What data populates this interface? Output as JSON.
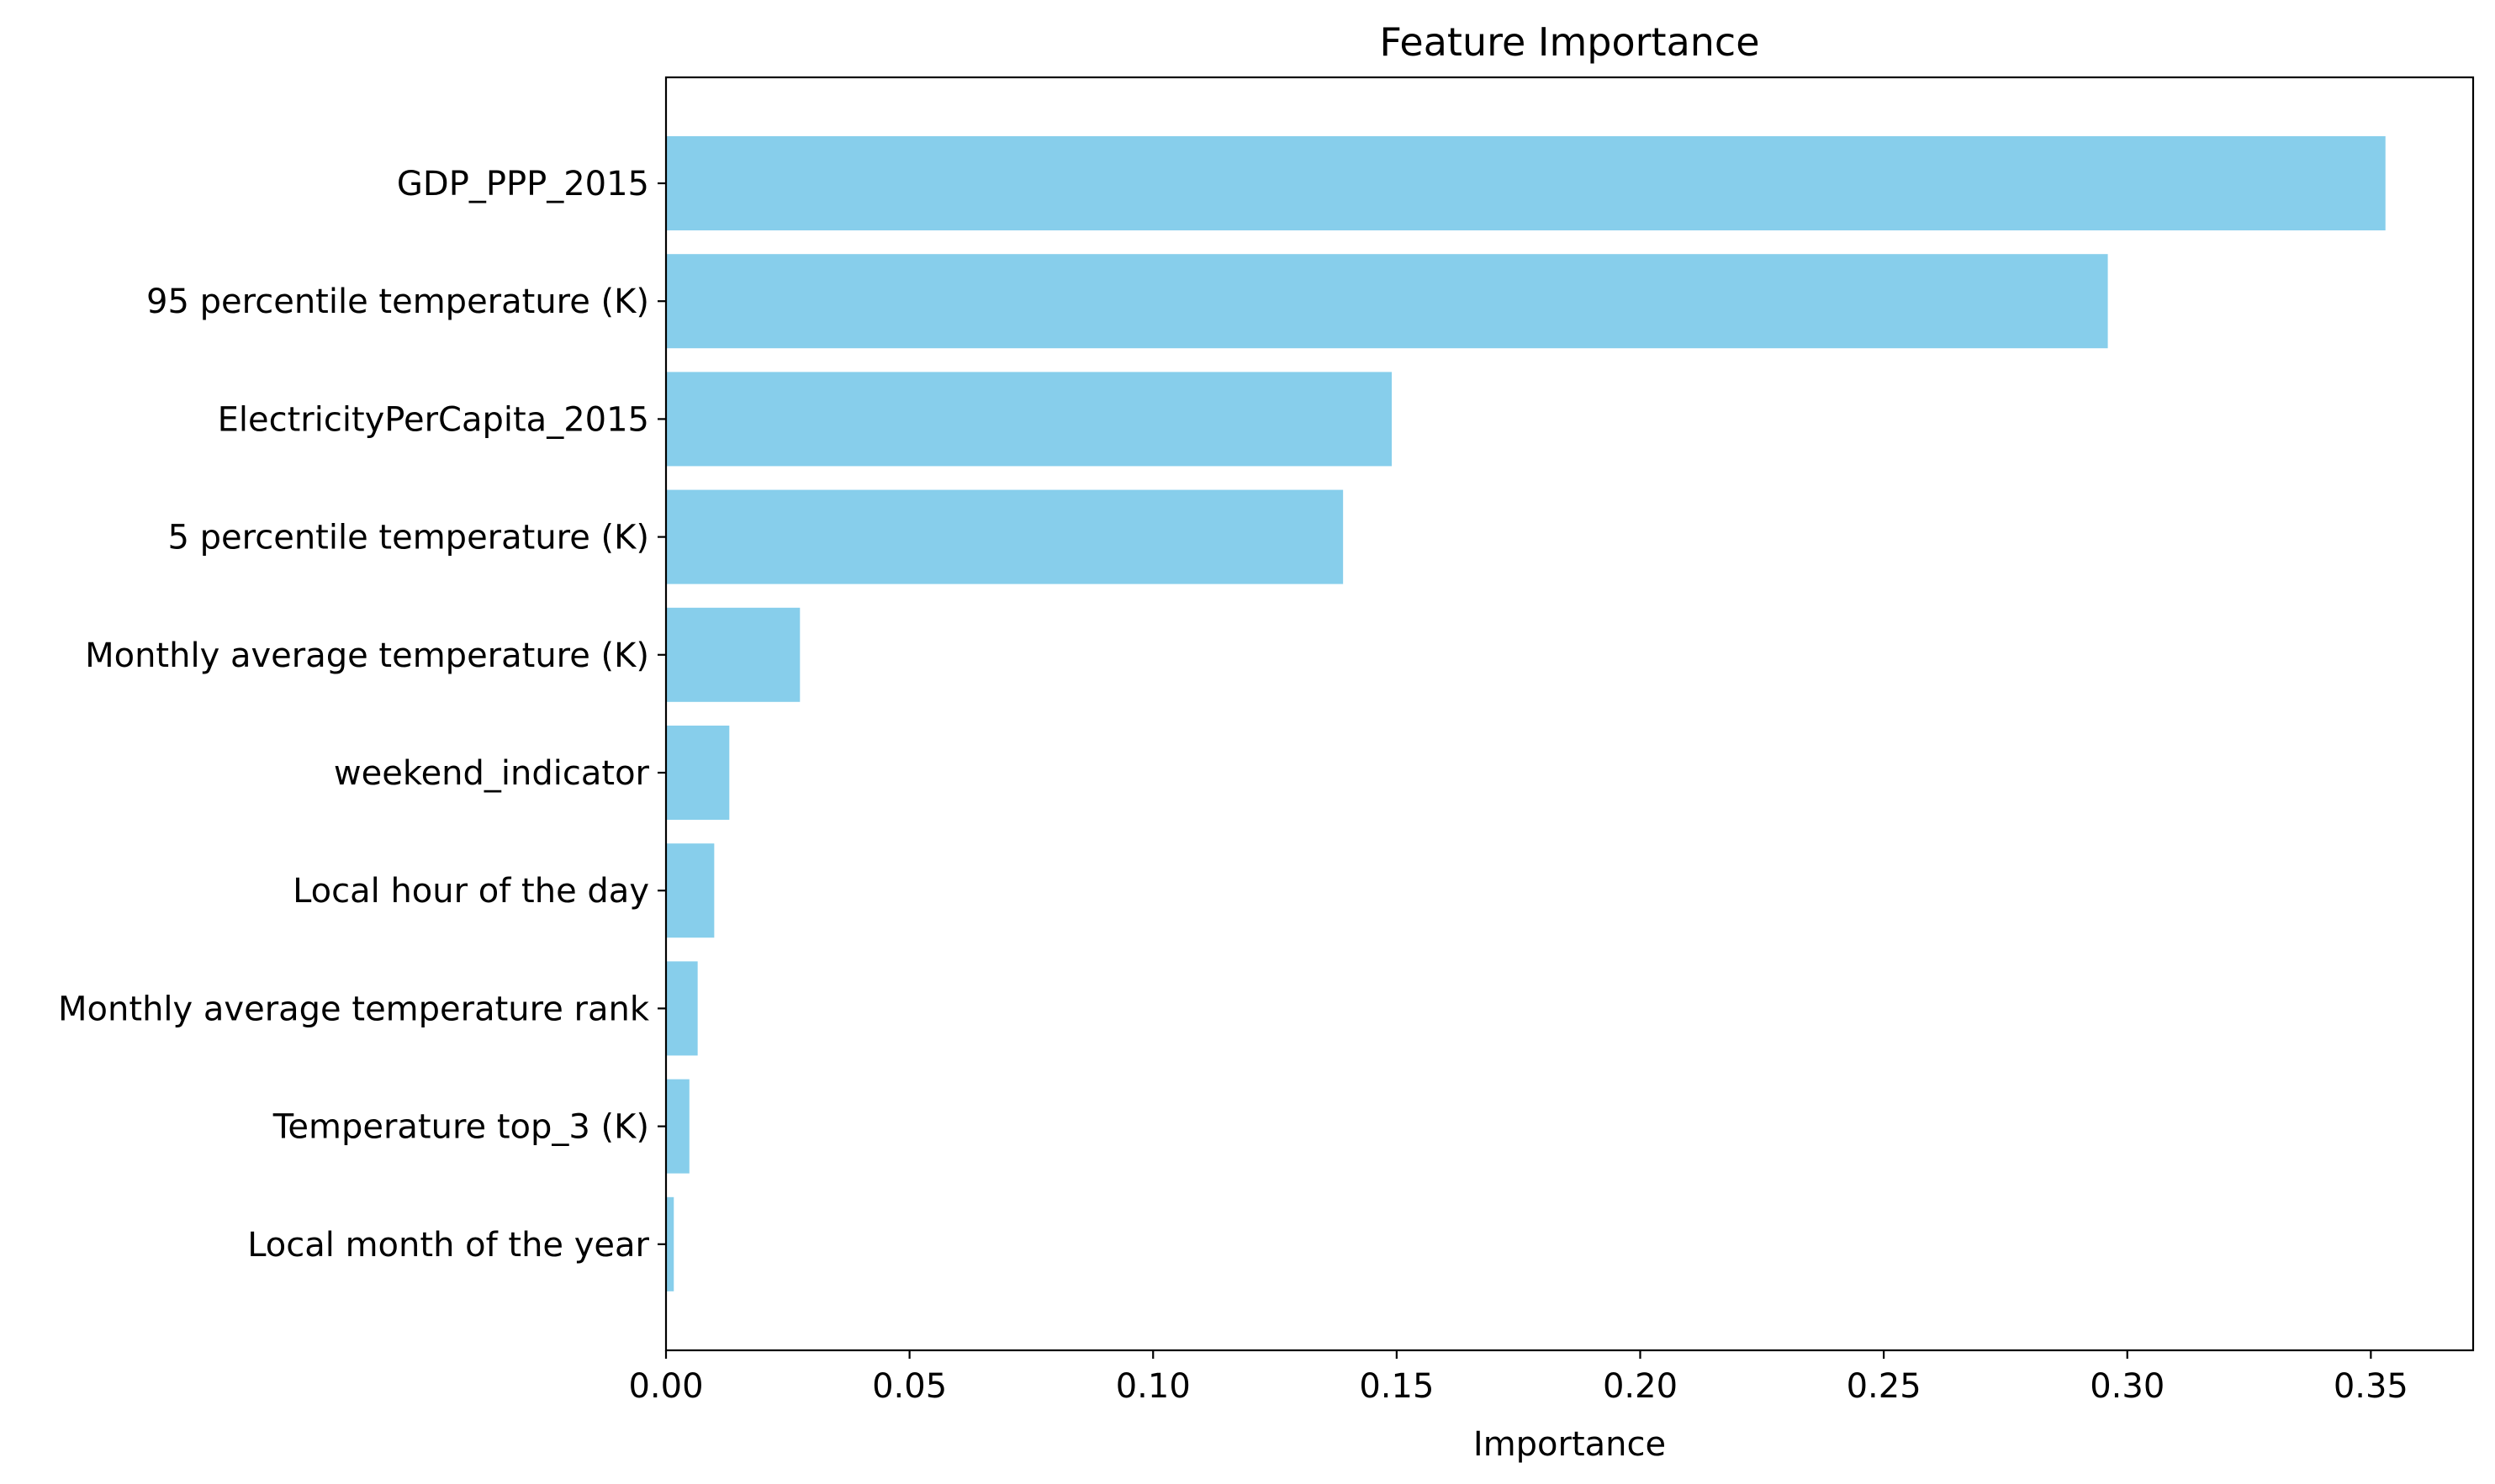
{
  "chart_data": {
    "type": "bar",
    "orientation": "horizontal",
    "title": "Feature Importance",
    "xlabel": "Importance",
    "ylabel": "",
    "xlim": [
      0,
      0.371
    ],
    "xticks": [
      0.0,
      0.05,
      0.1,
      0.15,
      0.2,
      0.25,
      0.3,
      0.35
    ],
    "xtick_labels": [
      "0.00",
      "0.05",
      "0.10",
      "0.15",
      "0.20",
      "0.25",
      "0.30",
      "0.35"
    ],
    "categories": [
      "GDP_PPP_2015",
      "95 percentile temperature (K)",
      "ElectricityPerCapita_2015",
      "5 percentile temperature (K)",
      "Monthly average temperature (K)",
      "weekend_indicator",
      "Local hour of the day",
      "Monthly average temperature rank",
      "Temperature top_3 (K)",
      "Local month of the year"
    ],
    "values": [
      0.353,
      0.296,
      0.149,
      0.139,
      0.0275,
      0.013,
      0.0099,
      0.0065,
      0.0048,
      0.0016
    ],
    "bar_color": "#87ceeb",
    "grid": false,
    "legend": null
  }
}
